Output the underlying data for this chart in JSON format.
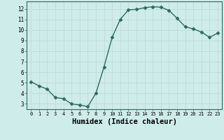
{
  "x": [
    0,
    1,
    2,
    3,
    4,
    5,
    6,
    7,
    8,
    9,
    10,
    11,
    12,
    13,
    14,
    15,
    16,
    17,
    18,
    19,
    20,
    21,
    22,
    23
  ],
  "y": [
    5.1,
    4.7,
    4.4,
    3.6,
    3.5,
    3.0,
    2.9,
    2.75,
    4.0,
    6.5,
    9.3,
    11.0,
    11.9,
    11.95,
    12.1,
    12.2,
    12.15,
    11.85,
    11.1,
    10.3,
    10.1,
    9.8,
    9.3,
    9.7
  ],
  "line_color": "#2e6b5e",
  "marker": "D",
  "marker_size": 2.5,
  "bg_color": "#ceecea",
  "grid_color": "#c0dbd8",
  "xlabel": "Humidex (Indice chaleur)",
  "xlabel_fontsize": 7.5,
  "ylabel_ticks": [
    3,
    4,
    5,
    6,
    7,
    8,
    9,
    10,
    11,
    12
  ],
  "xlim": [
    -0.5,
    23.5
  ],
  "ylim": [
    2.5,
    12.7
  ],
  "xtick_labels": [
    "0",
    "1",
    "2",
    "3",
    "4",
    "5",
    "6",
    "7",
    "8",
    "9",
    "10",
    "11",
    "12",
    "13",
    "14",
    "15",
    "16",
    "17",
    "18",
    "19",
    "20",
    "21",
    "22",
    "23"
  ]
}
